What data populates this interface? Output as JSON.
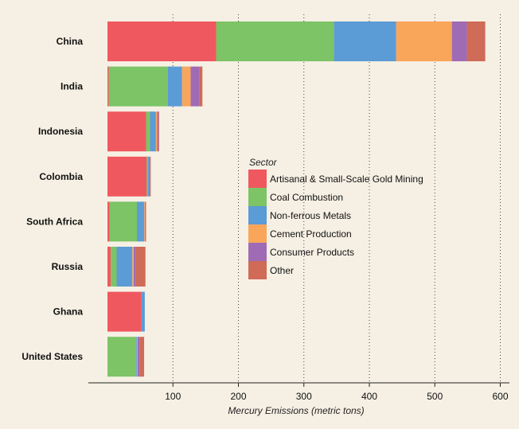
{
  "chart_data": {
    "type": "bar",
    "orientation": "horizontal",
    "stacked": true,
    "title": "",
    "xlabel": "Mercury Emissions (metric tons)",
    "ylabel": "",
    "xlim": [
      -30,
      610
    ],
    "xticks": [
      100,
      200,
      300,
      400,
      500,
      600
    ],
    "grid": "vertical dotted",
    "legend_title": "Sector",
    "legend_position": "center-right",
    "categories": [
      "China",
      "India",
      "Indonesia",
      "Colombia",
      "South Africa",
      "Russia",
      "Ghana",
      "United States"
    ],
    "series": [
      {
        "name": "Artisanal & Small-Scale Gold Mining",
        "color": "#f0585f",
        "values": [
          166,
          2,
          59,
          60,
          3,
          5,
          52,
          0
        ]
      },
      {
        "name": "Coal Combustion",
        "color": "#7cc466",
        "values": [
          180,
          90,
          6,
          2,
          42,
          9,
          0,
          44
        ]
      },
      {
        "name": "Non-ferrous Metals",
        "color": "#5b9bd6",
        "values": [
          95,
          22,
          9,
          2,
          11,
          24,
          5,
          1
        ]
      },
      {
        "name": "Cement Production",
        "color": "#faa65a",
        "values": [
          85,
          13,
          2,
          0,
          1,
          2,
          0,
          1
        ]
      },
      {
        "name": "Consumer Products",
        "color": "#a06bb5",
        "values": [
          23,
          13,
          2,
          1,
          1,
          3,
          0,
          3
        ]
      },
      {
        "name": "Other",
        "color": "#cf6b56",
        "values": [
          28,
          5,
          1,
          1,
          1,
          15,
          0,
          7
        ]
      }
    ]
  }
}
